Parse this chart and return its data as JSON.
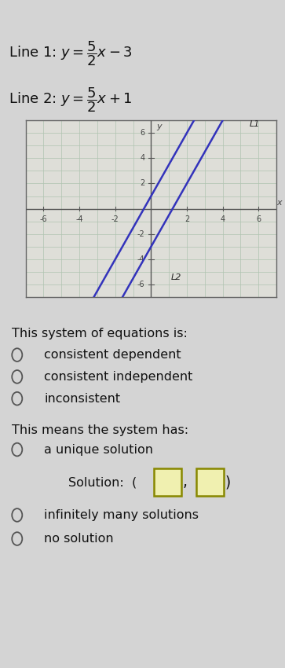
{
  "background_color": "#d4d4d4",
  "graph_bg_color": "#deded8",
  "grid_color": "#b0c4b0",
  "line1_slope": 2.5,
  "line1_intercept": -3,
  "line2_slope": 2.5,
  "line2_intercept": 1,
  "line1_color": "#3333bb",
  "line2_color": "#3333bb",
  "line1_label": "L1",
  "line2_label": "L2",
  "xlim": [
    -7,
    7
  ],
  "ylim": [
    -7,
    7
  ],
  "xticks": [
    -6,
    -4,
    -2,
    2,
    4,
    6
  ],
  "yticks": [
    -6,
    -4,
    -2,
    2,
    4,
    6
  ],
  "line1_equation_parts": [
    "Line 1: ",
    "y",
    " = ",
    "5",
    "2",
    "x",
    " − 3"
  ],
  "line2_equation_parts": [
    "Line 2: ",
    "y",
    " = ",
    "5",
    "2",
    "x",
    " + 1"
  ],
  "section1_title": "This system of equations is:",
  "radio_options_1": [
    "consistent dependent",
    "consistent independent",
    "inconsistent"
  ],
  "section2_title": "This means the system has:",
  "radio_options_2": [
    "a unique solution",
    "infinitely many solutions",
    "no solution"
  ],
  "text_color": "#111111",
  "font_size_eq": 13,
  "font_size_body": 11.5
}
